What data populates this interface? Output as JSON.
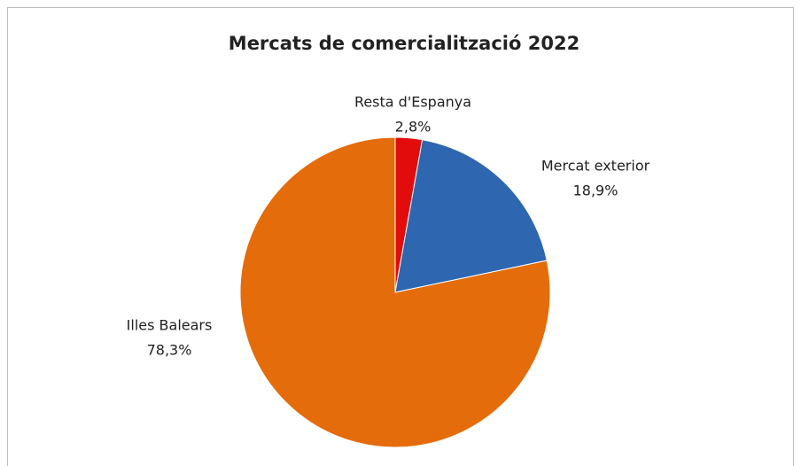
{
  "chart_data": {
    "type": "pie",
    "title": "Mercats de comercialització 2022",
    "categories": [
      "Resta d'Espanya",
      "Mercat exterior",
      "Illes Balears"
    ],
    "values": [
      2.8,
      18.9,
      78.3
    ],
    "value_labels": [
      "2,8%",
      "18,9%",
      "78,3%"
    ],
    "colors": [
      "#e20c0c",
      "#2e67b0",
      "#e46c0a"
    ]
  }
}
